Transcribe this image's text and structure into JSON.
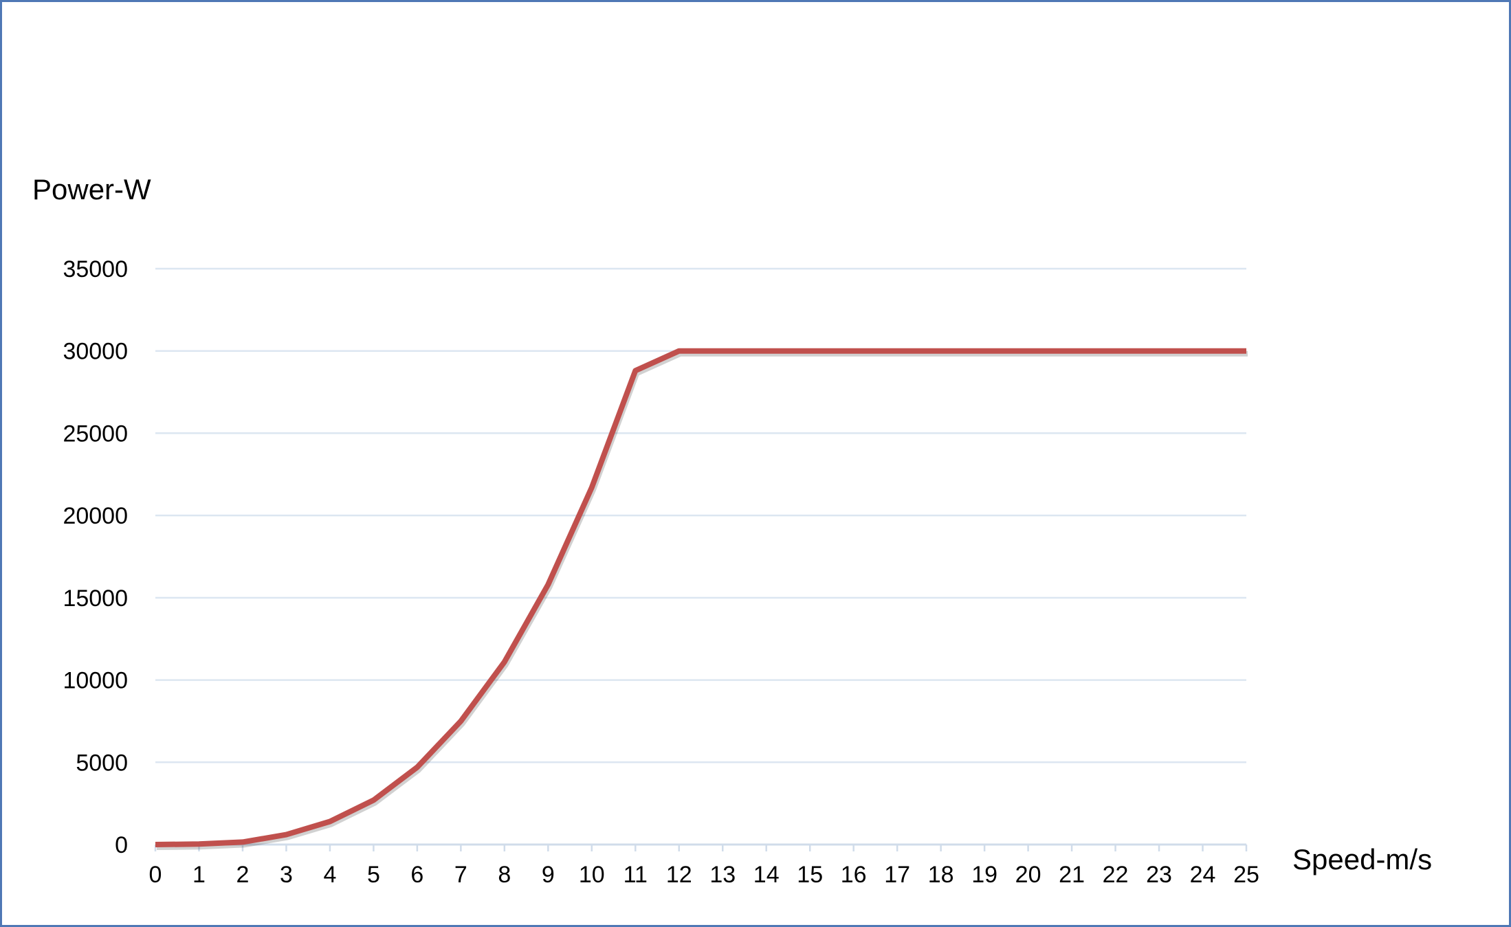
{
  "chart_data": {
    "type": "line",
    "title": "",
    "xlabel": "Speed-m/s",
    "ylabel": "Power-W",
    "x": [
      0,
      1,
      2,
      3,
      4,
      5,
      6,
      7,
      8,
      9,
      10,
      11,
      12,
      13,
      14,
      15,
      16,
      17,
      18,
      19,
      20,
      21,
      22,
      23,
      24,
      25
    ],
    "x_tick_labels": [
      "0",
      "1",
      "2",
      "3",
      "4",
      "5",
      "6",
      "7",
      "8",
      "9",
      "10",
      "11",
      "12",
      "13",
      "14",
      "15",
      "16",
      "17",
      "18",
      "19",
      "20",
      "21",
      "22",
      "23",
      "24",
      "25"
    ],
    "y_tick_labels": [
      "0",
      "5000",
      "10000",
      "15000",
      "20000",
      "25000",
      "30000",
      "35000"
    ],
    "y_ticks": [
      0,
      5000,
      10000,
      15000,
      20000,
      25000,
      30000,
      35000
    ],
    "xlim": [
      0,
      25
    ],
    "ylim": [
      0,
      35000
    ],
    "grid": "horizontal",
    "legend": "none",
    "series": [
      {
        "color": "#c0504d",
        "values": [
          0,
          30,
          150,
          600,
          1400,
          2700,
          4700,
          7500,
          11100,
          15800,
          21700,
          28800,
          30000,
          30000,
          30000,
          30000,
          30000,
          30000,
          30000,
          30000,
          30000,
          30000,
          30000,
          30000,
          30000,
          30000
        ]
      }
    ],
    "colors": {
      "gridline": "#dce6f1",
      "axis": "#d0dcea",
      "border": "#4f78b5"
    }
  }
}
